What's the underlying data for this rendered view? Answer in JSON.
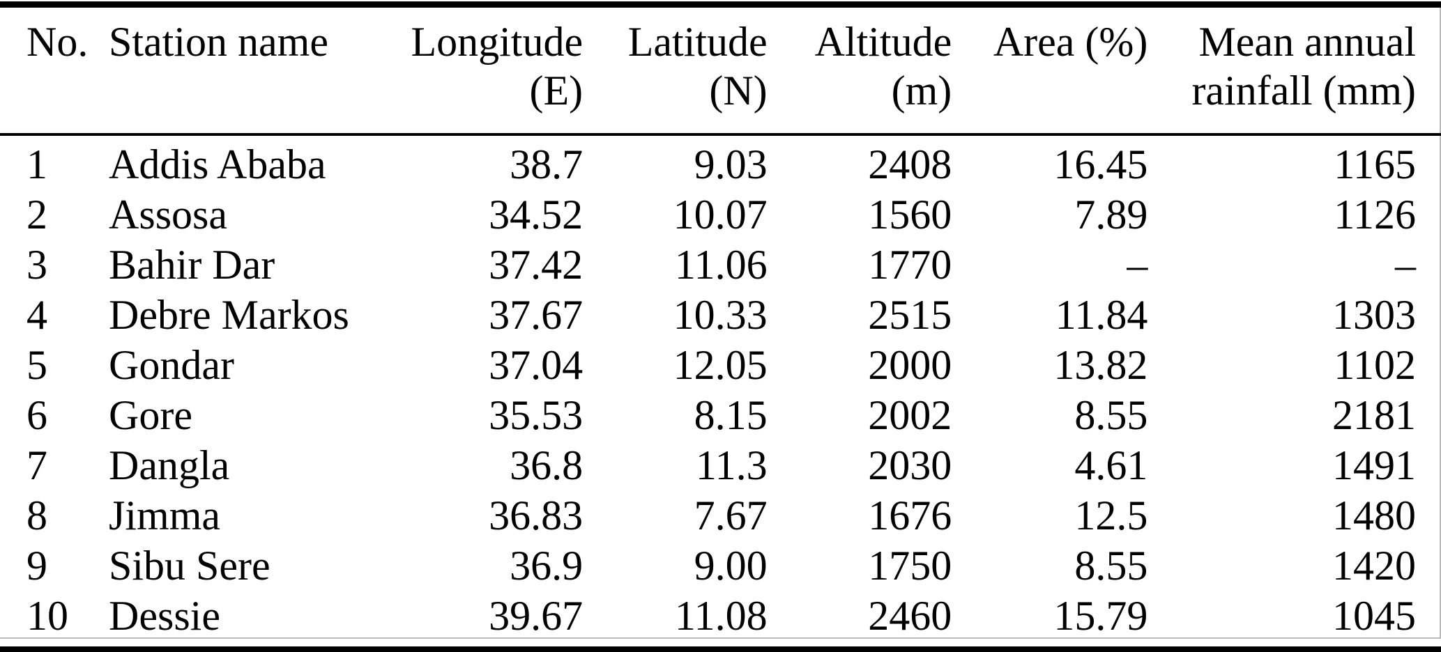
{
  "table": {
    "columns": [
      {
        "label_line1": "No.",
        "label_line2": "",
        "align": "left"
      },
      {
        "label_line1": "Station name",
        "label_line2": "",
        "align": "left"
      },
      {
        "label_line1": "Longitude",
        "label_line2": "(E)",
        "align": "right"
      },
      {
        "label_line1": "Latitude",
        "label_line2": "(N)",
        "align": "right"
      },
      {
        "label_line1": "Altitude",
        "label_line2": "(m)",
        "align": "right"
      },
      {
        "label_line1": "Area (%)",
        "label_line2": "",
        "align": "right"
      },
      {
        "label_line1": "Mean annual",
        "label_line2": "rainfall (mm)",
        "align": "right"
      }
    ],
    "rows": [
      [
        "1",
        "Addis Ababa",
        "38.7",
        "9.03",
        "2408",
        "16.45",
        "1165"
      ],
      [
        "2",
        "Assosa",
        "34.52",
        "10.07",
        "1560",
        "7.89",
        "1126"
      ],
      [
        "3",
        "Bahir Dar",
        "37.42",
        "11.06",
        "1770",
        "–",
        "–"
      ],
      [
        "4",
        "Debre Markos",
        "37.67",
        "10.33",
        "2515",
        "11.84",
        "1303"
      ],
      [
        "5",
        "Gondar",
        "37.04",
        "12.05",
        "2000",
        "13.82",
        "1102"
      ],
      [
        "6",
        "Gore",
        "35.53",
        "8.15",
        "2002",
        "8.55",
        "2181"
      ],
      [
        "7",
        "Dangla",
        "36.8",
        "11.3",
        "2030",
        "4.61",
        "1491"
      ],
      [
        "8",
        "Jimma",
        "36.83",
        "7.67",
        "1676",
        "12.5",
        "1480"
      ],
      [
        "9",
        "Sibu Sere",
        "36.9",
        "9.00",
        "1750",
        "8.55",
        "1420"
      ],
      [
        "10",
        "Dessie",
        "39.67",
        "11.08",
        "2460",
        "15.79",
        "1045"
      ]
    ],
    "colors": {
      "text": "#000000",
      "background": "#ffffff",
      "rule": "#000000"
    }
  }
}
